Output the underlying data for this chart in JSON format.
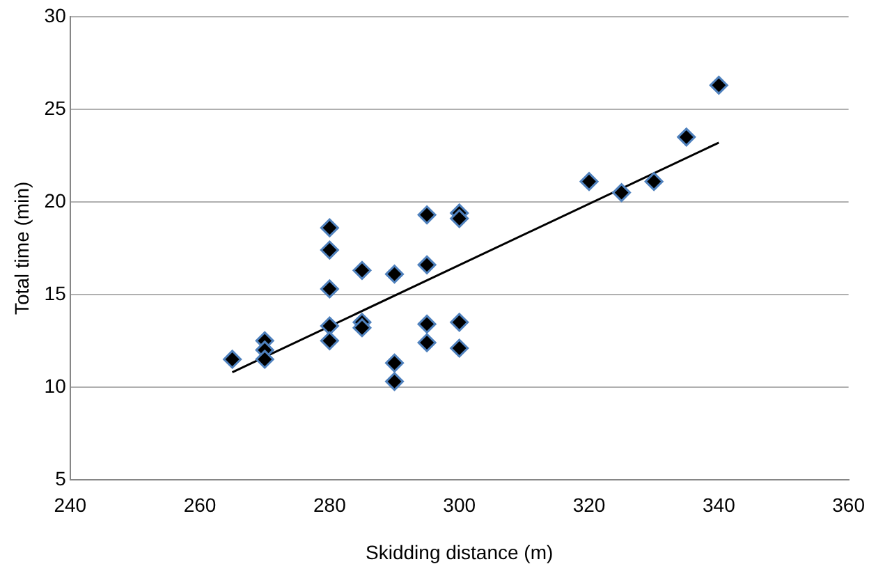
{
  "chart_data": {
    "type": "scatter",
    "xlabel": "Skidding distance (m)",
    "ylabel": "Total time (min)",
    "xlim": [
      240,
      360
    ],
    "xticks": [
      240,
      260,
      280,
      300,
      320,
      340,
      360
    ],
    "ylim": [
      5,
      30
    ],
    "yticks": [
      5,
      10,
      15,
      20,
      25,
      30
    ],
    "grid": "y",
    "legend": false,
    "series": [
      {
        "color": "#000000",
        "marker": "diamond",
        "x": [
          265,
          270,
          270,
          270,
          280,
          280,
          280,
          280,
          280,
          285,
          285,
          285,
          290,
          290,
          290,
          295,
          295,
          295,
          295,
          300,
          300,
          300,
          300,
          320,
          325,
          330,
          335,
          340
        ],
        "values": [
          11.5,
          12.5,
          12,
          11.5,
          18.6,
          17.4,
          15.3,
          13.3,
          12.5,
          16.3,
          13.5,
          13.2,
          16.1,
          11.3,
          10.3,
          19.3,
          16.6,
          13.4,
          12.4,
          19.4,
          19.1,
          13.5,
          12.1,
          21.1,
          20.5,
          21.1,
          23.5,
          26.3
        ]
      },
      {
        "type": "line",
        "marker": "none",
        "color": "#000000",
        "x": [
          265,
          340
        ],
        "values": [
          10.8,
          23.2
        ]
      }
    ]
  }
}
